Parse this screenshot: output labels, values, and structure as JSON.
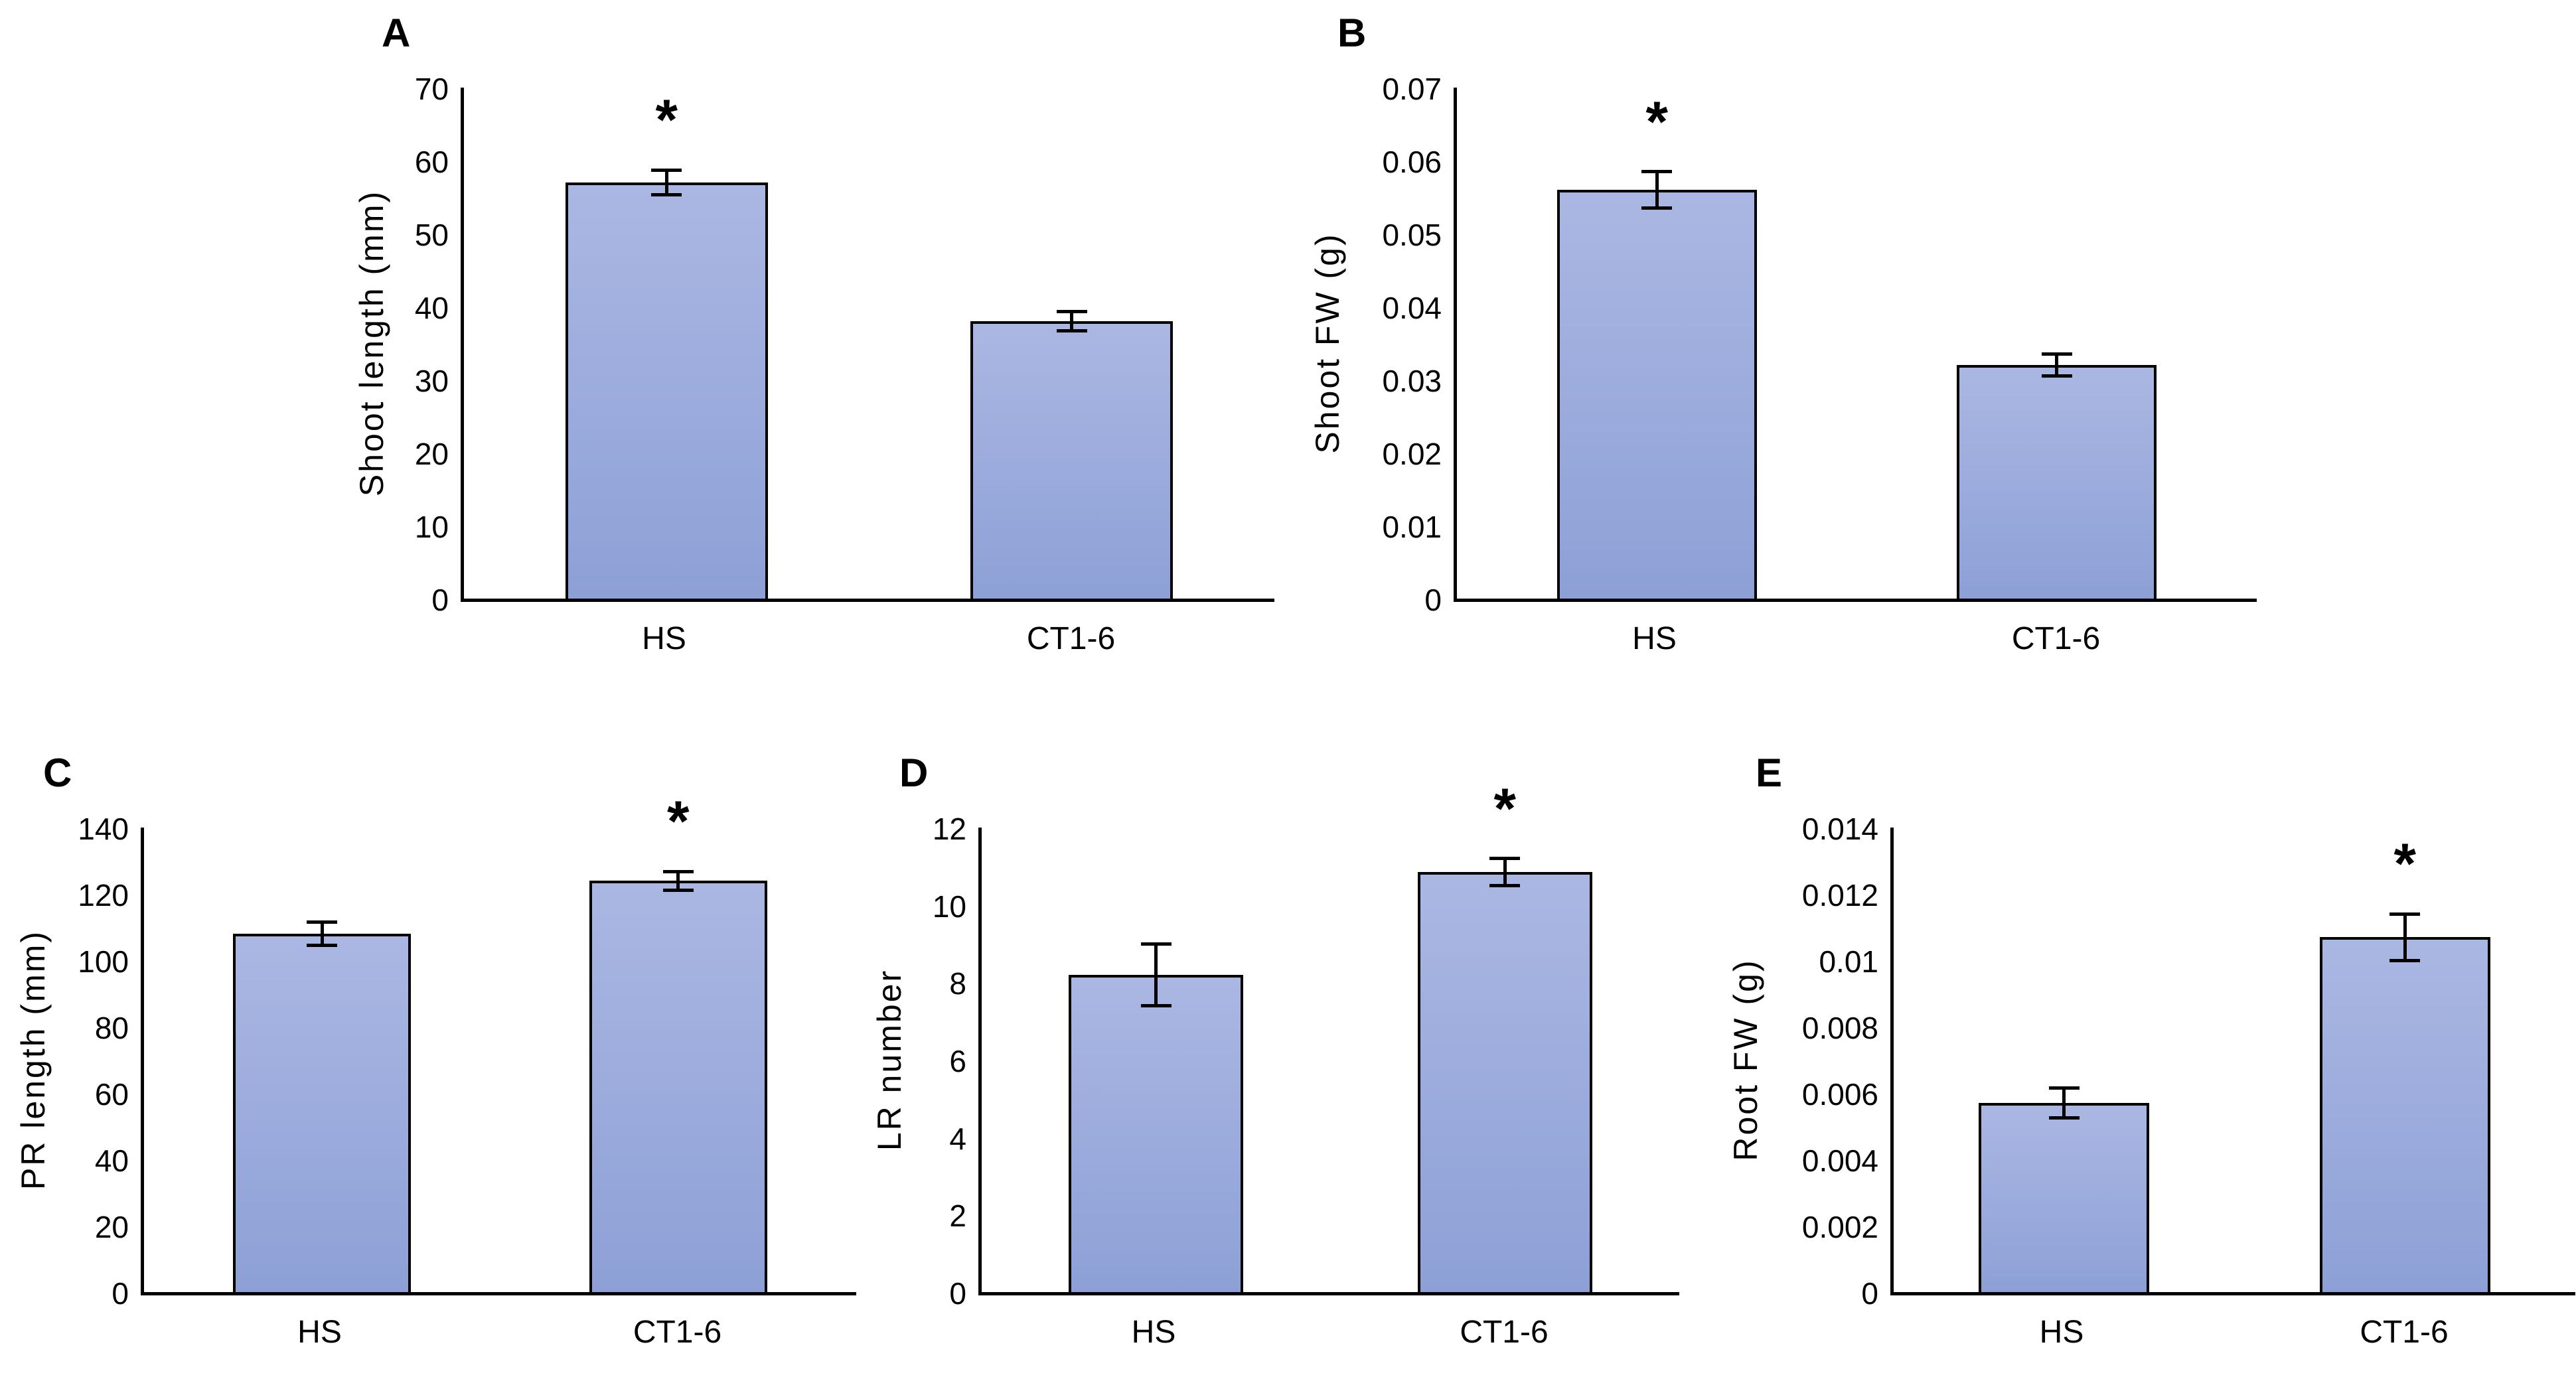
{
  "figure": {
    "bar_fill_top": "#abb7e3",
    "bar_fill_bottom": "#8da0d6",
    "bar_border": "#000000",
    "significance_marker": "*",
    "group_labels": [
      "HS",
      "CT1-6"
    ]
  },
  "chart_data": [
    {
      "panel": "A",
      "type": "bar",
      "title": "",
      "xlabel": "",
      "ylabel": "Shoot length (mm)",
      "categories": [
        "HS",
        "CT1-6"
      ],
      "values": [
        57,
        38
      ],
      "errors": [
        1.7,
        1.3
      ],
      "significant": [
        true,
        false
      ],
      "ylim": [
        0,
        70
      ],
      "yticks": [
        0,
        10,
        20,
        30,
        40,
        50,
        60,
        70
      ],
      "ytick_labels": [
        "0",
        "10",
        "20",
        "30",
        "40",
        "50",
        "60",
        "70"
      ],
      "grid": false,
      "legend": null
    },
    {
      "panel": "B",
      "type": "bar",
      "title": "",
      "xlabel": "",
      "ylabel": "Shoot FW (g)",
      "categories": [
        "HS",
        "CT1-6"
      ],
      "values": [
        0.056,
        0.032
      ],
      "errors": [
        0.0025,
        0.0015
      ],
      "significant": [
        true,
        false
      ],
      "ylim": [
        0,
        0.07
      ],
      "yticks": [
        0,
        0.01,
        0.02,
        0.03,
        0.04,
        0.05,
        0.06,
        0.07
      ],
      "ytick_labels": [
        "0",
        "0.01",
        "0.02",
        "0.03",
        "0.04",
        "0.05",
        "0.06",
        "0.07"
      ],
      "grid": false,
      "legend": null
    },
    {
      "panel": "C",
      "type": "bar",
      "title": "",
      "xlabel": "",
      "ylabel": "PR length (mm)",
      "categories": [
        "HS",
        "CT1-6"
      ],
      "values": [
        108,
        124
      ],
      "errors": [
        3.5,
        2.8
      ],
      "significant": [
        false,
        true
      ],
      "ylim": [
        0,
        140
      ],
      "yticks": [
        0,
        20,
        40,
        60,
        80,
        100,
        120,
        140
      ],
      "ytick_labels": [
        "0",
        "20",
        "40",
        "60",
        "80",
        "100",
        "120",
        "140"
      ],
      "grid": false,
      "legend": null
    },
    {
      "panel": "D",
      "type": "bar",
      "title": "",
      "xlabel": "",
      "ylabel": "LR number",
      "categories": [
        "HS",
        "CT1-6"
      ],
      "values": [
        8.2,
        10.85
      ],
      "errors": [
        0.8,
        0.35
      ],
      "significant": [
        false,
        true
      ],
      "ylim": [
        0,
        12
      ],
      "yticks": [
        0,
        2,
        4,
        6,
        8,
        10,
        12
      ],
      "ytick_labels": [
        "0",
        "2",
        "4",
        "6",
        "8",
        "10",
        "12"
      ],
      "grid": false,
      "legend": null
    },
    {
      "panel": "E",
      "type": "bar",
      "title": "",
      "xlabel": "",
      "ylabel": "Root FW (g)",
      "categories": [
        "HS",
        "CT1-6"
      ],
      "values": [
        0.0057,
        0.0107
      ],
      "errors": [
        0.00045,
        0.0007
      ],
      "significant": [
        false,
        true
      ],
      "ylim": [
        0,
        0.014
      ],
      "yticks": [
        0,
        0.002,
        0.004,
        0.006,
        0.008,
        0.01,
        0.012,
        0.014
      ],
      "ytick_labels": [
        "0",
        "0.002",
        "0.004",
        "0.006",
        "0.008",
        "0.01",
        "0.012",
        "0.014"
      ],
      "grid": false,
      "legend": null
    }
  ]
}
